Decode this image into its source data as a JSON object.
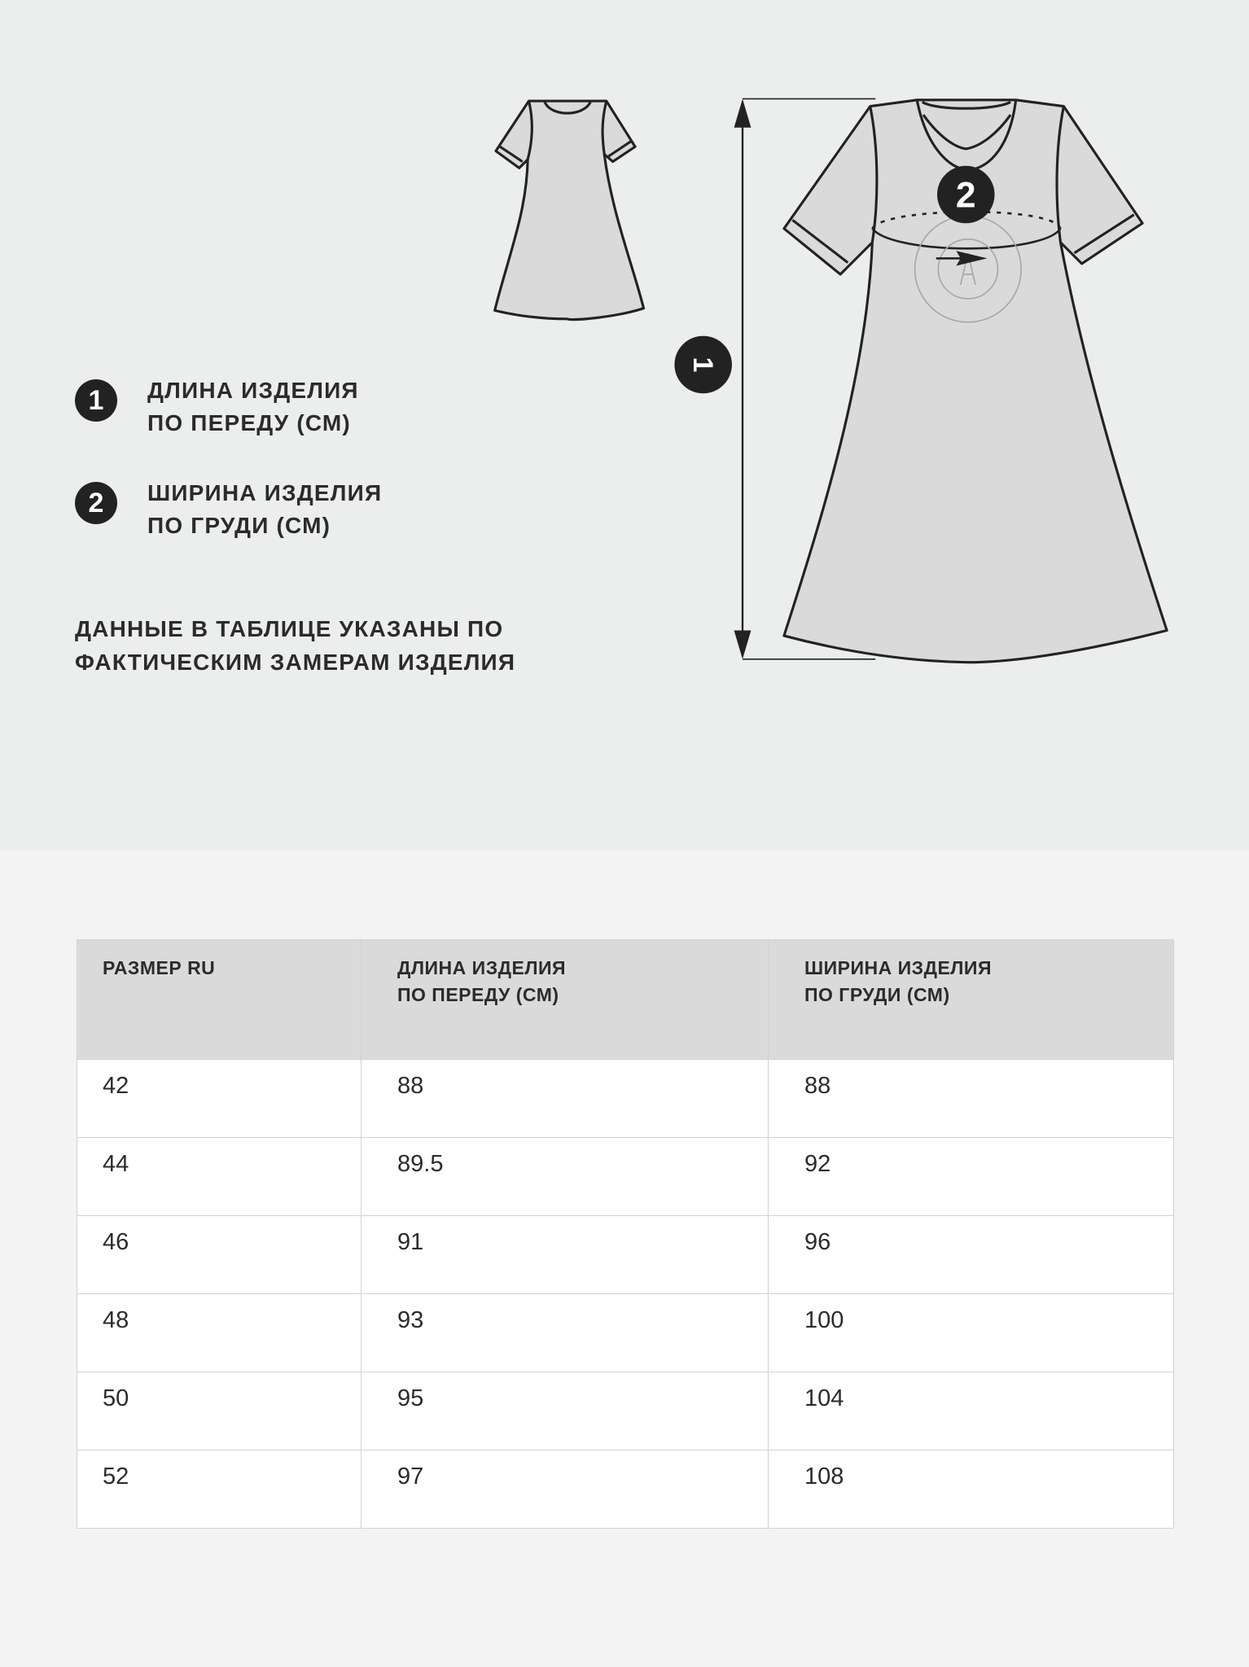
{
  "legend": [
    {
      "number": "1",
      "line1": "ДЛИНА ИЗДЕЛИЯ",
      "line2": "ПО ПЕРЕДУ (СМ)"
    },
    {
      "number": "2",
      "line1": "ШИРИНА ИЗДЕЛИЯ",
      "line2": "ПО ГРУДИ (СМ)"
    }
  ],
  "note": {
    "line1": "ДАННЫЕ В ТАБЛИЦЕ УКАЗАНЫ ПО",
    "line2": "ФАКТИЧЕСКИМ ЗАМЕРАМ ИЗДЕЛИЯ"
  },
  "diagram": {
    "marker_length": "1",
    "marker_width": "2"
  },
  "table": {
    "headers": [
      {
        "line1": "РАЗМЕР RU",
        "line2": ""
      },
      {
        "line1": "ДЛИНА ИЗДЕЛИЯ",
        "line2": "ПО ПЕРЕДУ (СМ)"
      },
      {
        "line1": "ШИРИНА ИЗДЕЛИЯ",
        "line2": "ПО ГРУДИ (СМ)"
      }
    ],
    "rows": [
      [
        "42",
        "88",
        "88"
      ],
      [
        "44",
        "89.5",
        "92"
      ],
      [
        "46",
        "91",
        "96"
      ],
      [
        "48",
        "93",
        "100"
      ],
      [
        "50",
        "95",
        "104"
      ],
      [
        "52",
        "97",
        "108"
      ]
    ]
  },
  "colors": {
    "top_bg": "#eceeed",
    "bottom_bg": "#f3f3f3",
    "header_bg": "#d9dad9",
    "ink": "#222222",
    "garment_fill": "#d9dad9"
  }
}
